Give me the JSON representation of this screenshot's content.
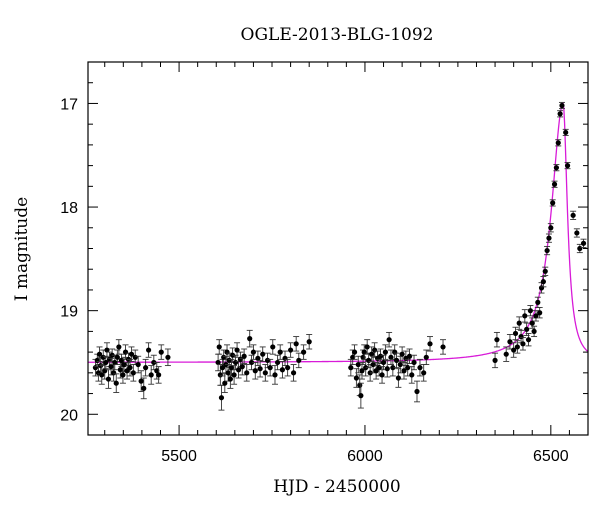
{
  "chart_data": {
    "type": "scatter",
    "title": "OGLE-2013-BLG-1092",
    "xlabel": "HJD - 2450000",
    "ylabel": "I magnitude",
    "xlim": [
      5255,
      6600
    ],
    "ylim": [
      20.2,
      16.6
    ],
    "y_inverted": true,
    "grid": false,
    "x_ticks": [
      5500,
      6000,
      6500
    ],
    "y_ticks": [
      17,
      18,
      19,
      20
    ],
    "model_curve": {
      "color": "#d81bd8",
      "baseline_mag": 19.5,
      "peak_hjd": 6533,
      "peak_mag": 17.0,
      "rise_time_days": 38,
      "decline_time_days": 14
    },
    "series": [
      {
        "marker_color": "#000000",
        "points": [
          [
            5275,
            19.55,
            0.08
          ],
          [
            5280,
            19.48,
            0.06
          ],
          [
            5283,
            19.6,
            0.08
          ],
          [
            5286,
            19.42,
            0.07
          ],
          [
            5289,
            19.53,
            0.08
          ],
          [
            5292,
            19.62,
            0.09
          ],
          [
            5296,
            19.45,
            0.07
          ],
          [
            5300,
            19.58,
            0.08
          ],
          [
            5303,
            19.5,
            0.06
          ],
          [
            5306,
            19.38,
            0.07
          ],
          [
            5310,
            19.66,
            0.09
          ],
          [
            5313,
            19.47,
            0.07
          ],
          [
            5317,
            19.54,
            0.08
          ],
          [
            5320,
            19.43,
            0.06
          ],
          [
            5324,
            19.6,
            0.08
          ],
          [
            5327,
            19.5,
            0.07
          ],
          [
            5331,
            19.7,
            0.09
          ],
          [
            5334,
            19.45,
            0.07
          ],
          [
            5338,
            19.35,
            0.07
          ],
          [
            5342,
            19.57,
            0.08
          ],
          [
            5345,
            19.48,
            0.06
          ],
          [
            5349,
            19.62,
            0.08
          ],
          [
            5352,
            19.52,
            0.07
          ],
          [
            5356,
            19.4,
            0.07
          ],
          [
            5360,
            19.58,
            0.08
          ],
          [
            5364,
            19.47,
            0.06
          ],
          [
            5368,
            19.55,
            0.08
          ],
          [
            5372,
            19.42,
            0.07
          ],
          [
            5377,
            19.6,
            0.08
          ],
          [
            5382,
            19.45,
            0.07
          ],
          [
            5390,
            19.52,
            0.08
          ],
          [
            5398,
            19.68,
            0.1
          ],
          [
            5405,
            19.75,
            0.1
          ],
          [
            5410,
            19.55,
            0.08
          ],
          [
            5418,
            19.38,
            0.07
          ],
          [
            5425,
            19.62,
            0.09
          ],
          [
            5432,
            19.5,
            0.07
          ],
          [
            5440,
            19.58,
            0.08
          ],
          [
            5445,
            19.62,
            0.08
          ],
          [
            5452,
            19.4,
            0.07
          ],
          [
            5470,
            19.45,
            0.08
          ],
          [
            5605,
            19.5,
            0.08
          ],
          [
            5608,
            19.35,
            0.07
          ],
          [
            5611,
            19.62,
            0.1
          ],
          [
            5614,
            19.84,
            0.12
          ],
          [
            5617,
            19.55,
            0.08
          ],
          [
            5620,
            19.45,
            0.07
          ],
          [
            5623,
            19.7,
            0.09
          ],
          [
            5626,
            19.52,
            0.08
          ],
          [
            5629,
            19.4,
            0.07
          ],
          [
            5632,
            19.6,
            0.08
          ],
          [
            5635,
            19.48,
            0.07
          ],
          [
            5638,
            19.66,
            0.09
          ],
          [
            5641,
            19.55,
            0.08
          ],
          [
            5644,
            19.43,
            0.07
          ],
          [
            5648,
            19.62,
            0.09
          ],
          [
            5652,
            19.5,
            0.07
          ],
          [
            5656,
            19.38,
            0.07
          ],
          [
            5660,
            19.57,
            0.08
          ],
          [
            5665,
            19.47,
            0.07
          ],
          [
            5670,
            19.54,
            0.08
          ],
          [
            5675,
            19.44,
            0.07
          ],
          [
            5682,
            19.6,
            0.08
          ],
          [
            5690,
            19.27,
            0.08
          ],
          [
            5695,
            19.5,
            0.07
          ],
          [
            5700,
            19.4,
            0.07
          ],
          [
            5705,
            19.58,
            0.08
          ],
          [
            5712,
            19.46,
            0.07
          ],
          [
            5718,
            19.56,
            0.08
          ],
          [
            5725,
            19.42,
            0.07
          ],
          [
            5732,
            19.6,
            0.08
          ],
          [
            5738,
            19.48,
            0.07
          ],
          [
            5745,
            19.55,
            0.08
          ],
          [
            5752,
            19.35,
            0.07
          ],
          [
            5758,
            19.62,
            0.09
          ],
          [
            5765,
            19.5,
            0.07
          ],
          [
            5772,
            19.4,
            0.07
          ],
          [
            5778,
            19.57,
            0.08
          ],
          [
            5785,
            19.46,
            0.07
          ],
          [
            5792,
            19.55,
            0.08
          ],
          [
            5800,
            19.38,
            0.07
          ],
          [
            5808,
            19.6,
            0.08
          ],
          [
            5815,
            19.32,
            0.07
          ],
          [
            5822,
            19.48,
            0.07
          ],
          [
            5835,
            19.4,
            0.07
          ],
          [
            5850,
            19.3,
            0.07
          ],
          [
            5962,
            19.55,
            0.08
          ],
          [
            5967,
            19.45,
            0.07
          ],
          [
            5972,
            19.4,
            0.07
          ],
          [
            5977,
            19.65,
            0.09
          ],
          [
            5982,
            19.52,
            0.08
          ],
          [
            5986,
            19.72,
            0.1
          ],
          [
            5989,
            19.82,
            0.12
          ],
          [
            5992,
            19.58,
            0.08
          ],
          [
            5995,
            19.45,
            0.07
          ],
          [
            5998,
            19.4,
            0.07
          ],
          [
            6002,
            19.55,
            0.08
          ],
          [
            6006,
            19.35,
            0.07
          ],
          [
            6010,
            19.48,
            0.07
          ],
          [
            6014,
            19.6,
            0.08
          ],
          [
            6018,
            19.42,
            0.07
          ],
          [
            6022,
            19.52,
            0.08
          ],
          [
            6026,
            19.38,
            0.07
          ],
          [
            6030,
            19.58,
            0.08
          ],
          [
            6034,
            19.46,
            0.07
          ],
          [
            6038,
            19.55,
            0.08
          ],
          [
            6042,
            19.44,
            0.07
          ],
          [
            6046,
            19.62,
            0.08
          ],
          [
            6050,
            19.5,
            0.07
          ],
          [
            6055,
            19.4,
            0.07
          ],
          [
            6060,
            19.56,
            0.08
          ],
          [
            6065,
            19.28,
            0.07
          ],
          [
            6070,
            19.45,
            0.07
          ],
          [
            6075,
            19.55,
            0.08
          ],
          [
            6080,
            19.4,
            0.07
          ],
          [
            6085,
            19.48,
            0.07
          ],
          [
            6090,
            19.65,
            0.09
          ],
          [
            6095,
            19.52,
            0.08
          ],
          [
            6100,
            19.42,
            0.07
          ],
          [
            6105,
            19.58,
            0.08
          ],
          [
            6110,
            19.46,
            0.07
          ],
          [
            6115,
            19.55,
            0.08
          ],
          [
            6120,
            19.44,
            0.07
          ],
          [
            6126,
            19.62,
            0.08
          ],
          [
            6132,
            19.5,
            0.07
          ],
          [
            6140,
            19.78,
            0.1
          ],
          [
            6148,
            19.55,
            0.08
          ],
          [
            6158,
            19.6,
            0.08
          ],
          [
            6165,
            19.45,
            0.07
          ],
          [
            6175,
            19.32,
            0.07
          ],
          [
            6210,
            19.35,
            0.07
          ],
          [
            6350,
            19.48,
            0.07
          ],
          [
            6355,
            19.28,
            0.07
          ],
          [
            6380,
            19.42,
            0.07
          ],
          [
            6390,
            19.3,
            0.07
          ],
          [
            6400,
            19.38,
            0.07
          ],
          [
            6405,
            19.22,
            0.06
          ],
          [
            6410,
            19.35,
            0.06
          ],
          [
            6415,
            19.12,
            0.06
          ],
          [
            6420,
            19.25,
            0.06
          ],
          [
            6425,
            19.32,
            0.06
          ],
          [
            6430,
            19.05,
            0.06
          ],
          [
            6435,
            19.18,
            0.06
          ],
          [
            6440,
            19.28,
            0.06
          ],
          [
            6445,
            19.0,
            0.05
          ],
          [
            6450,
            19.12,
            0.05
          ],
          [
            6455,
            19.2,
            0.05
          ],
          [
            6460,
            19.05,
            0.05
          ],
          [
            6465,
            18.92,
            0.05
          ],
          [
            6470,
            19.02,
            0.05
          ],
          [
            6475,
            18.78,
            0.05
          ],
          [
            6480,
            18.72,
            0.05
          ],
          [
            6485,
            18.62,
            0.04
          ],
          [
            6490,
            18.42,
            0.04
          ],
          [
            6495,
            18.3,
            0.04
          ],
          [
            6500,
            18.2,
            0.04
          ],
          [
            6505,
            17.96,
            0.03
          ],
          [
            6510,
            17.78,
            0.03
          ],
          [
            6515,
            17.62,
            0.03
          ],
          [
            6520,
            17.38,
            0.03
          ],
          [
            6525,
            17.1,
            0.03
          ],
          [
            6530,
            17.02,
            0.03
          ],
          [
            6540,
            17.28,
            0.03
          ],
          [
            6545,
            17.6,
            0.03
          ],
          [
            6560,
            18.08,
            0.04
          ],
          [
            6570,
            18.25,
            0.04
          ],
          [
            6578,
            18.4,
            0.04
          ],
          [
            6588,
            18.35,
            0.04
          ]
        ]
      }
    ]
  }
}
